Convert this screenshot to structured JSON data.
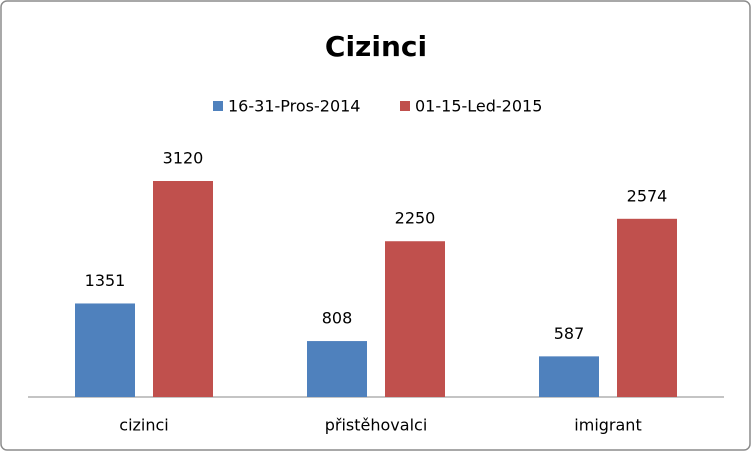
{
  "chart_data": {
    "type": "bar",
    "title": "Cizinci",
    "categories": [
      "cizinci",
      "přistěhovalci",
      "imigrant"
    ],
    "series": [
      {
        "name": "16-31-Pros-2014",
        "color": "#4f81bd",
        "values": [
          1351,
          808,
          587
        ]
      },
      {
        "name": "01-15-Led-2015",
        "color": "#c0504d",
        "values": [
          3120,
          2250,
          2574
        ]
      }
    ]
  }
}
